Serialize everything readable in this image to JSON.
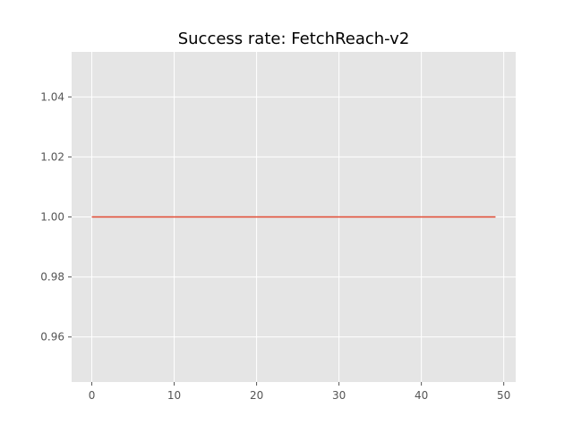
{
  "chart_data": {
    "type": "line",
    "title": "Success rate: FetchReach-v2",
    "xlabel": "",
    "ylabel": "",
    "xlim": [
      -2.45,
      51.45
    ],
    "ylim": [
      0.945,
      1.055
    ],
    "x_ticks": [
      0,
      10,
      20,
      30,
      40,
      50
    ],
    "x_tick_labels": [
      "0",
      "10",
      "20",
      "30",
      "40",
      "50"
    ],
    "y_ticks": [
      0.96,
      0.98,
      1.0,
      1.02,
      1.04
    ],
    "y_tick_labels": [
      "0.96",
      "0.98",
      "1.00",
      "1.02",
      "1.04"
    ],
    "grid": true,
    "background": "#e5e5e5",
    "series": [
      {
        "color": "#e24a33",
        "x": [
          0,
          1,
          2,
          3,
          4,
          5,
          6,
          7,
          8,
          9,
          10,
          11,
          12,
          13,
          14,
          15,
          16,
          17,
          18,
          19,
          20,
          21,
          22,
          23,
          24,
          25,
          26,
          27,
          28,
          29,
          30,
          31,
          32,
          33,
          34,
          35,
          36,
          37,
          38,
          39,
          40,
          41,
          42,
          43,
          44,
          45,
          46,
          47,
          48,
          49
        ],
        "y": [
          1,
          1,
          1,
          1,
          1,
          1,
          1,
          1,
          1,
          1,
          1,
          1,
          1,
          1,
          1,
          1,
          1,
          1,
          1,
          1,
          1,
          1,
          1,
          1,
          1,
          1,
          1,
          1,
          1,
          1,
          1,
          1,
          1,
          1,
          1,
          1,
          1,
          1,
          1,
          1,
          1,
          1,
          1,
          1,
          1,
          1,
          1,
          1,
          1,
          1
        ]
      }
    ]
  }
}
